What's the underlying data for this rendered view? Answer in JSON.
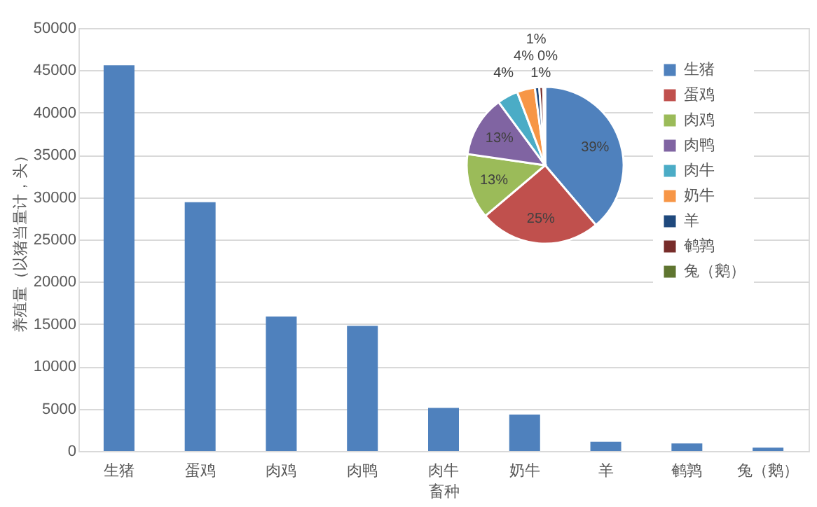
{
  "chart_data": [
    {
      "type": "bar",
      "xlabel": "畜种",
      "ylabel": "养殖量（以猪当量计，头）",
      "categories": [
        "生猪",
        "蛋鸡",
        "肉鸡",
        "肉鸭",
        "肉牛",
        "奶牛",
        "羊",
        "鹌鹑",
        "兔（鹅）"
      ],
      "values": [
        45600,
        29400,
        15900,
        14800,
        5100,
        4300,
        1100,
        900,
        400
      ],
      "color": "#4f81bd",
      "ylim": [
        0,
        50000
      ],
      "yticks": [
        0,
        5000,
        10000,
        15000,
        20000,
        25000,
        30000,
        35000,
        40000,
        45000,
        50000
      ],
      "grid": "y"
    },
    {
      "type": "pie",
      "categories": [
        "生猪",
        "蛋鸡",
        "肉鸡",
        "肉鸭",
        "肉牛",
        "奶牛",
        "羊",
        "鹌鹑",
        "兔（鹅）"
      ],
      "values": [
        38.8,
        25.0,
        13.5,
        12.6,
        4.3,
        3.7,
        0.9,
        0.8,
        0.4
      ],
      "colors": [
        "#4f81bd",
        "#c0504d",
        "#9bbb59",
        "#8064a2",
        "#4bacc6",
        "#f79646",
        "#1f497d",
        "#772c2a",
        "#5f7530"
      ],
      "value_labels": [
        "39%",
        "25%",
        "13%",
        "13%",
        "4%",
        "4%",
        "1%",
        "1%",
        "0%"
      ],
      "legend": "right"
    }
  ]
}
